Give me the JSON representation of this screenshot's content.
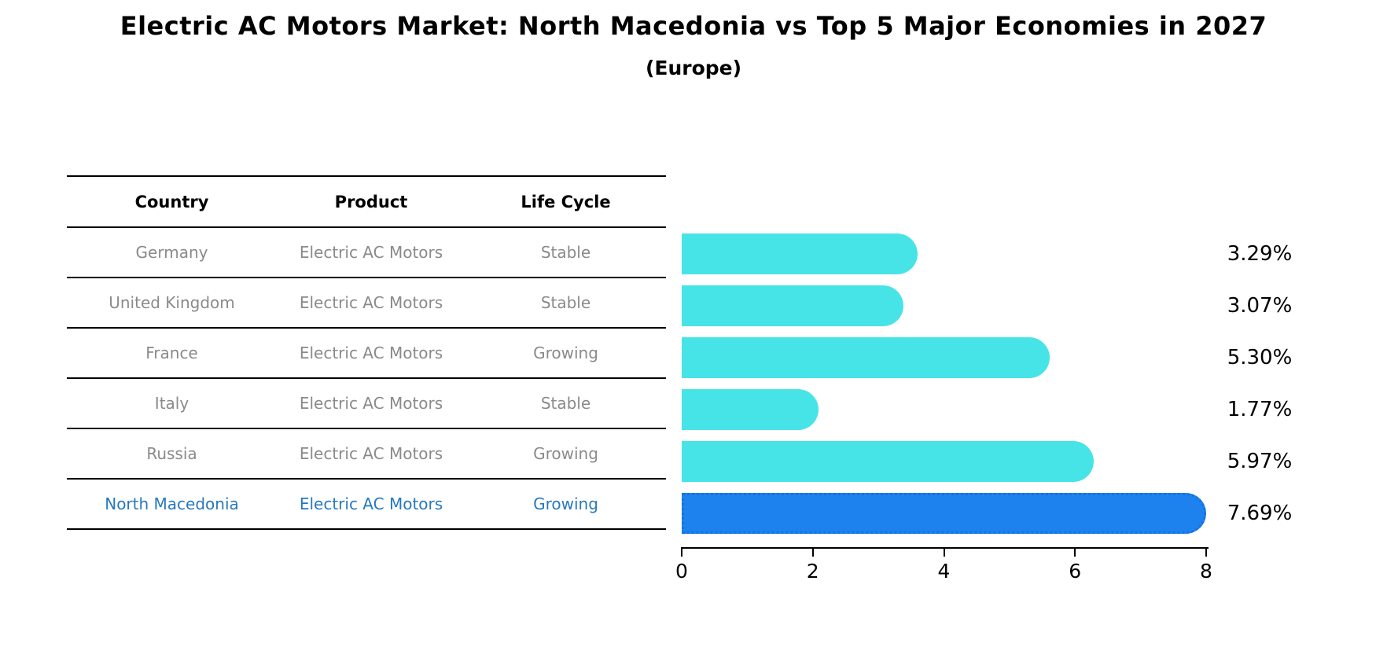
{
  "header": {
    "title": "Electric AC Motors Market: North Macedonia vs Top 5 Major Economies in 2027",
    "subtitle": "(Europe)"
  },
  "table": {
    "columns": [
      "Country",
      "Product",
      "Life Cycle"
    ],
    "rows": [
      {
        "country": "Germany",
        "product": "Electric AC Motors",
        "life_cycle": "Stable",
        "highlight": false
      },
      {
        "country": "United Kingdom",
        "product": "Electric AC Motors",
        "life_cycle": "Stable",
        "highlight": false
      },
      {
        "country": "France",
        "product": "Electric AC Motors",
        "life_cycle": "Growing",
        "highlight": false
      },
      {
        "country": "Italy",
        "product": "Electric AC Motors",
        "life_cycle": "Stable",
        "highlight": false
      },
      {
        "country": "Russia",
        "product": "Electric AC Motors",
        "life_cycle": "Growing",
        "highlight": false
      },
      {
        "country": "North Macedonia",
        "product": "Electric AC Motors",
        "life_cycle": "Growing",
        "highlight": true
      }
    ],
    "text_color": "#8a8a8a",
    "highlight_text_color": "#2878be"
  },
  "chart_data": {
    "type": "bar",
    "orientation": "horizontal",
    "title": "Electric AC Motors Market: North Macedonia vs Top 5 Major Economies in 2027",
    "subtitle": "(Europe)",
    "categories": [
      "Germany",
      "United Kingdom",
      "France",
      "Italy",
      "Russia",
      "North Macedonia"
    ],
    "values": [
      3.29,
      3.07,
      5.3,
      1.77,
      5.97,
      7.69
    ],
    "value_labels": [
      "3.29%",
      "3.07%",
      "5.30%",
      "1.77%",
      "5.97%",
      "7.69%"
    ],
    "xlabel": "",
    "ylabel": "",
    "xlim": [
      0,
      8
    ],
    "xticks": [
      "0",
      "2",
      "4",
      "6",
      "8"
    ],
    "xtick_values": [
      0,
      2,
      4,
      6,
      8
    ],
    "grid": false,
    "legend": null,
    "bar_color": "#47e4e7",
    "highlight_bar_color": "#1e82ee",
    "highlight_bar_edge_color": "#1273e2",
    "highlight_index": 5,
    "bar_style": "rounded-right-cap, highlighted bar has dotted edge"
  }
}
